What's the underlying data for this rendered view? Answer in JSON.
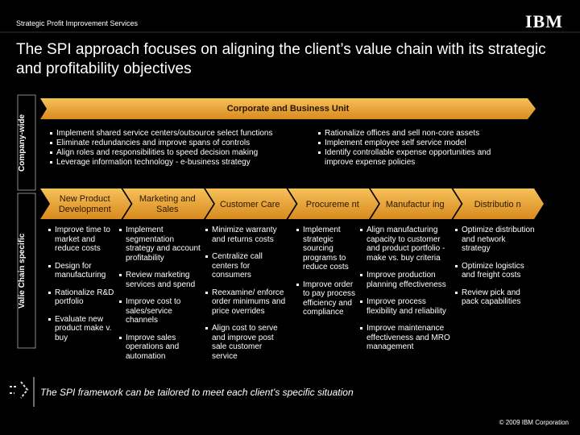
{
  "header": {
    "section": "Strategic Profit Improvement Services",
    "logo": "IBM"
  },
  "title": "The SPI approach focuses on aligning the client’s value chain with its strategic and profitability objectives",
  "sidebar_labels": {
    "company": "Company-wide",
    "value_chain": "Valie Chain specific"
  },
  "corporate": {
    "label": "Corporate and Business Unit",
    "bullets_left": [
      "Implement shared service centers/outsource select functions",
      "Eliminate redundancies and improve spans of controls",
      "Align roles and responsibilities to speed decision making",
      "Leverage information technology - e-business strategy"
    ],
    "bullets_right": [
      "Rationalize offices and sell non-core assets",
      "Implement employee self service model",
      "Identify controllable expense opportunities and improve expense policies"
    ]
  },
  "value_chain": [
    {
      "label": "New Product Development",
      "bullets": [
        "Improve time to market and reduce costs",
        "Design for manufacturing",
        "Rationalize R&D portfolio",
        "Evaluate new product make v. buy"
      ]
    },
    {
      "label": "Marketing and Sales",
      "bullets": [
        "Implement segmentation strategy and account profitability",
        "Review marketing services and spend",
        "Improve cost to sales/service channels",
        "Improve sales operations and automation"
      ]
    },
    {
      "label": "Customer Care",
      "bullets": [
        "Minimize warranty and returns costs",
        "Centralize call centers for consumers",
        "Reexamine/ enforce order minimums and price overrides",
        "Align cost to serve and improve post sale customer service"
      ]
    },
    {
      "label": "Procureme nt",
      "bullets": [
        "Implement strategic sourcing programs to reduce costs",
        "Improve order to pay process efficiency and compliance"
      ]
    },
    {
      "label": "Manufactur ing",
      "bullets": [
        "Align manufacturing capacity to customer and product portfolio - make vs. buy criteria",
        "Improve production planning effectiveness",
        "Improve process flexibility and reliability",
        "Improve maintenance effectiveness and MRO management"
      ]
    },
    {
      "label": "Distributio n",
      "bullets": [
        "Optimize distribution and network strategy",
        "Optimize logistics and freight costs",
        "Review pick and pack capabilities"
      ]
    }
  ],
  "footer": {
    "note": "The SPI framework can be tailored to meet each client’s specific situation",
    "copyright": "© 2009 IBM Corporation"
  }
}
